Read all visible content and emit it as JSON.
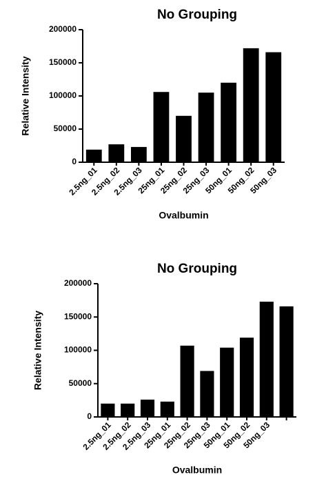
{
  "chart_data": [
    {
      "type": "bar",
      "title": "No Grouping",
      "x_label": "Ovalbumin",
      "y_label": "Relative Intensity",
      "categories": [
        "2.5ng_01",
        "2.5ng_02",
        "2.5ng_03",
        "25ng_01",
        "25ng_02",
        "25ng_03",
        "50ng_01",
        "50ng_02",
        "50ng_03"
      ],
      "values": [
        19000,
        27000,
        23000,
        106000,
        70000,
        105000,
        120000,
        172000,
        166000
      ],
      "color": "#000000",
      "ylim": [
        0,
        200000
      ],
      "yticks": [
        0,
        50000,
        100000,
        150000,
        200000
      ]
    },
    {
      "type": "bar",
      "title": "No Grouping",
      "x_label": "Ovalbumin",
      "y_label": "Relative Intensity",
      "categories": [
        "2.5ng_01",
        "2.5ng_02",
        "2.5ng_03",
        "25ng_01",
        "25ng_02",
        "25ng_03",
        "50ng_01",
        "50ng_02",
        "50ng_03",
        null
      ],
      "values": [
        20000,
        20000,
        26000,
        23000,
        107000,
        69000,
        104000,
        119000,
        173000,
        166000
      ],
      "color": "#000000",
      "ylim": [
        0,
        200000
      ],
      "yticks": [
        0,
        50000,
        100000,
        150000,
        200000
      ]
    }
  ]
}
